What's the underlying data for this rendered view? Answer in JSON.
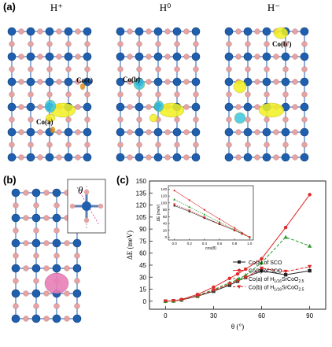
{
  "panel_labels": {
    "a": "(a)",
    "b": "(b)",
    "c": "(c)"
  },
  "structures": [
    {
      "title": "H⁺",
      "labels": [
        "Co(a)",
        "Co(c)"
      ]
    },
    {
      "title": "H⁰",
      "labels": [
        "Co(b)"
      ]
    },
    {
      "title": "H⁻",
      "labels": [
        "Co(b')"
      ]
    }
  ],
  "inset_symbol": "θ",
  "colors": {
    "co_atom": "#1f5fae",
    "o_atom": "#e6a3a3",
    "charge_yellow": "#f2f020",
    "charge_cyan": "#39c6e0",
    "charge_pink": "#e87fb8",
    "h_atom": "#e88a1e",
    "series_black": "#222222",
    "series_red": "#e0282a",
    "series_green": "#2a9a2a"
  },
  "chart_data": {
    "type": "line",
    "xlabel": "θ (°)",
    "ylabel": "ΔE (meV)",
    "xlim": [
      -10,
      100
    ],
    "ylim": [
      -10,
      150
    ],
    "xticks": [
      0,
      30,
      60,
      90
    ],
    "yticks": [
      0,
      15,
      30,
      45,
      60,
      75,
      90,
      105,
      120,
      135,
      150
    ],
    "x": [
      0,
      5,
      10,
      20,
      30,
      40,
      45,
      50,
      60,
      75,
      90
    ],
    "series": [
      {
        "name": "Co(a) of SCO",
        "marker": "square",
        "dash": false,
        "color": "#222222",
        "values": [
          0,
          0.4,
          1.6,
          6.3,
          12.5,
          20,
          25,
          29.7,
          38,
          33,
          38
        ]
      },
      {
        "name": "Co(b) of SCO",
        "marker": "circle",
        "dash": false,
        "color": "#e0282a",
        "values": [
          0,
          0.5,
          2.2,
          8.5,
          17.5,
          28.5,
          34,
          40,
          53,
          92,
          133
        ]
      },
      {
        "name": "Co(a) of H1/16SrCoO2.5",
        "marker": "triangle",
        "dash": true,
        "color": "#2a9a2a",
        "values": [
          0,
          0.4,
          1.8,
          7,
          14.5,
          23,
          27,
          32.5,
          48,
          80,
          69
        ]
      },
      {
        "name": "Co(b) of H1/16SrCoO2.5",
        "marker": "triangle-down",
        "dash": true,
        "color": "#e0282a",
        "values": [
          0,
          0.4,
          1.6,
          6.6,
          13.5,
          21.5,
          25.5,
          29.5,
          41,
          37,
          43
        ]
      }
    ],
    "legend": {
      "placement": "bottom-right",
      "entries": [
        {
          "prefix": "Co(a) of SCO",
          "sub1": "",
          "mid": "",
          "sub2": ""
        },
        {
          "prefix": "Co(b) of SCO",
          "sub1": "",
          "mid": "",
          "sub2": ""
        },
        {
          "prefix": "Co(a) of H",
          "sub1": "1/16",
          "mid": "SrCoO",
          "sub2": "2.5"
        },
        {
          "prefix": "Co(b) of H",
          "sub1": "1/16",
          "mid": "SrCoO",
          "sub2": "2.5"
        }
      ]
    },
    "inset": {
      "type": "line",
      "xlabel": "cos(θ)",
      "ylabel": "ΔE (meV)",
      "xlim": [
        -0.08,
        1.05
      ],
      "ylim": [
        -8,
        150
      ],
      "xticks": [
        "0.0",
        "0.2",
        "0.4",
        "0.6",
        "0.8",
        "1.0"
      ],
      "yticks": [
        "0",
        "20",
        "40",
        "60",
        "80",
        "100",
        "120",
        "140"
      ],
      "x": [
        0,
        0.2,
        0.4,
        0.6,
        0.8,
        0.9,
        1.0
      ],
      "series": [
        {
          "color": "#222222",
          "marker": "square",
          "dash": false,
          "values": [
            92,
            75,
            56,
            38,
            20,
            10,
            0
          ]
        },
        {
          "color": "#e0282a",
          "marker": "circle",
          "dash": false,
          "values": [
            136,
            108,
            80,
            53,
            27,
            13,
            0
          ]
        },
        {
          "color": "#2a9a2a",
          "marker": "triangle",
          "dash": true,
          "values": [
            110,
            88,
            66,
            44,
            22,
            11,
            0
          ]
        },
        {
          "color": "#e0282a",
          "marker": "triangle-down",
          "dash": true,
          "values": [
            96,
            78,
            58,
            39,
            20,
            10,
            0
          ]
        }
      ]
    }
  }
}
